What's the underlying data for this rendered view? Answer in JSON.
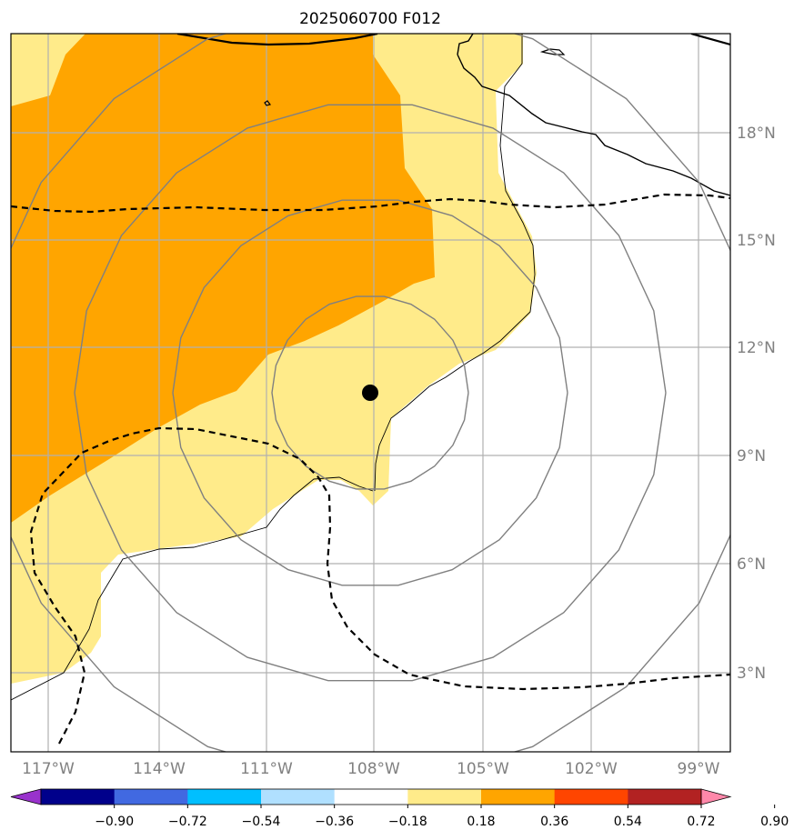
{
  "title": "2025060700 F012",
  "map": {
    "lon_range": [
      "118.4°W",
      "98.6°W"
    ],
    "lat_range": [
      "0.6°N",
      "20.6°N"
    ],
    "lon_ticks": [
      "117°W",
      "114°W",
      "111°W",
      "108°W",
      "105°W",
      "102°W",
      "99°W"
    ],
    "lat_ticks": [
      "3°N",
      "6°N",
      "9°N",
      "12°N",
      "15°N",
      "18°N"
    ],
    "gridlines": true,
    "center_marker": {
      "lon": "108°W",
      "lat": "10.8°N",
      "color": "#000000"
    },
    "range_rings": {
      "count": 4,
      "center": "108°W 10.8°N",
      "color": "#808080"
    },
    "dashed_contour_color": "#000000",
    "fill_levels": [
      {
        "range": "0.18–0.36",
        "color": "#ffeb8a"
      },
      {
        "range": "0.36–0.54",
        "color": "#ffa500"
      }
    ]
  },
  "colorbar": {
    "ticks": [
      "−0.90",
      "−0.72",
      "−0.54",
      "−0.36",
      "−0.18",
      "0.18",
      "0.36",
      "0.54",
      "0.72",
      "0.90"
    ],
    "colors": [
      "#9932cc",
      "#00008b",
      "#4169e1",
      "#00bfff",
      "#b0e0ff",
      "#ffffff",
      "#ffeb8a",
      "#ffa500",
      "#ff4500",
      "#b22222",
      "#ff88aa"
    ],
    "extend": "both"
  }
}
